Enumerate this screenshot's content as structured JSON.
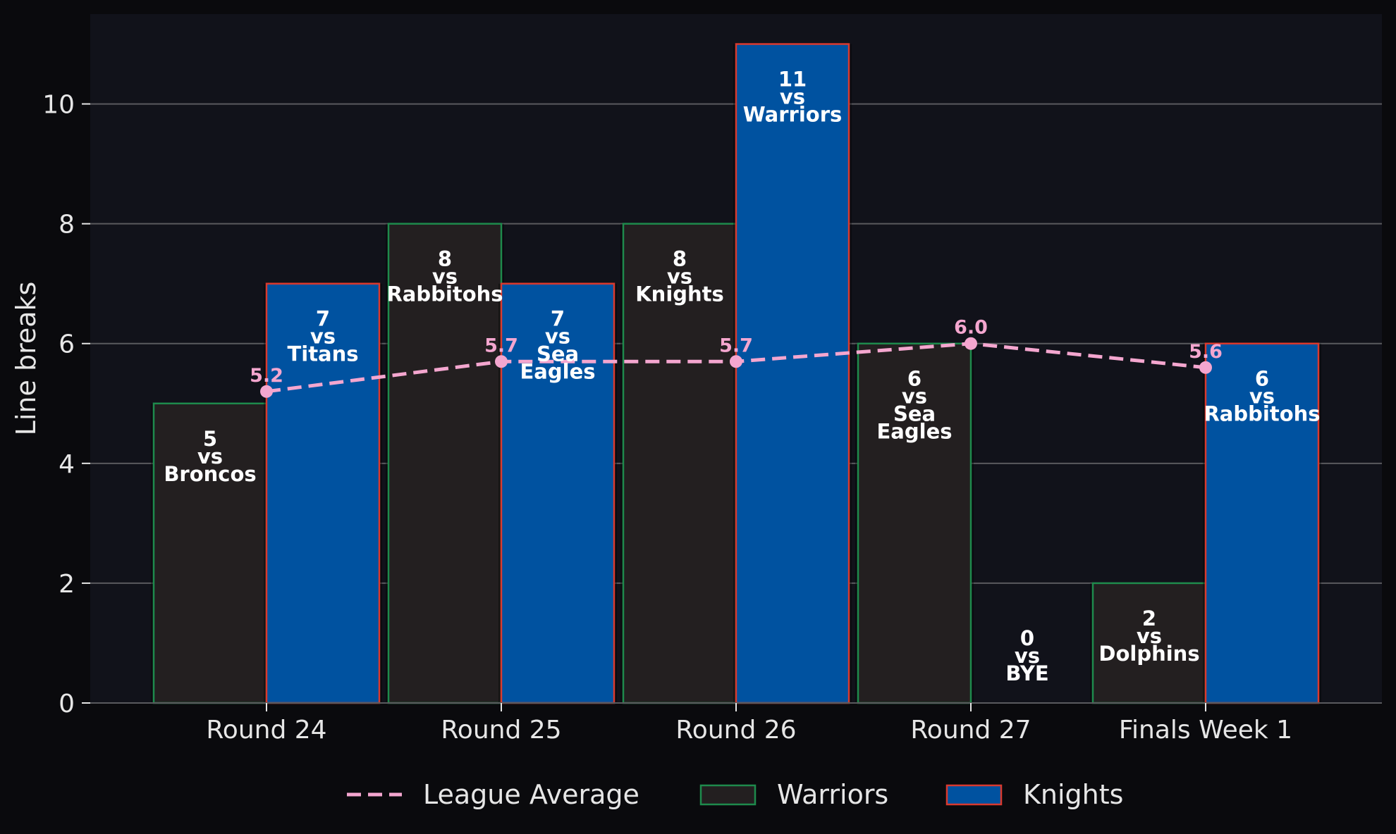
{
  "chart_data": {
    "type": "bar",
    "title": "",
    "xlabel": "",
    "ylabel": "Line breaks",
    "ylim": [
      0,
      11.5
    ],
    "yticks": [
      0,
      2,
      4,
      6,
      8,
      10
    ],
    "grid": "horizontal",
    "legend_position": "bottom",
    "categories": [
      "Round 24",
      "Round 25",
      "Round 26",
      "Round 27",
      "Finals Week 1"
    ],
    "series": [
      {
        "name": "Warriors",
        "values": [
          5,
          8,
          8,
          6,
          2
        ],
        "opponents": [
          "Broncos",
          "Rabbitohs",
          "Knights",
          "Sea Eagles",
          "Dolphins"
        ],
        "fill": "#231f20",
        "edge": "#1e8a4c"
      },
      {
        "name": "Knights",
        "values": [
          7,
          7,
          11,
          0,
          6
        ],
        "opponents": [
          "Titans",
          "Sea Eagles",
          "Warriors",
          "BYE",
          "Rabbitohs"
        ],
        "fill": "#0052a0",
        "edge": "#d93a2f"
      }
    ],
    "vs_word": "vs",
    "average": {
      "name": "League Average",
      "values": [
        5.2,
        5.7,
        5.7,
        6.0,
        5.6
      ],
      "labels": [
        "5.2",
        "5.7",
        "5.7",
        "6.0",
        "5.6"
      ],
      "color": "#f4a6cf"
    },
    "colors": {
      "page_background": "#0a0a0d",
      "plot_background": "#11121a",
      "grid": "#5a5a5e",
      "text": "#e6e6e6"
    }
  }
}
